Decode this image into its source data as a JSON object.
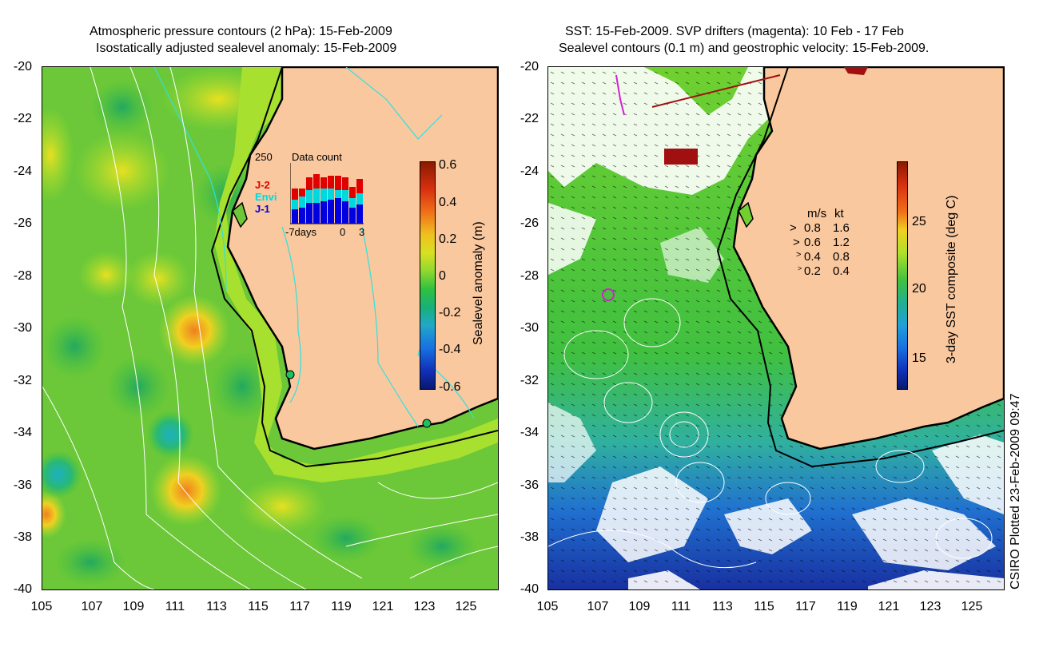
{
  "left_panel": {
    "title_line1": "Atmospheric pressure contours (2 hPa): 15-Feb-2009",
    "title_line2": "Isostatically adjusted sealevel anomaly: 15-Feb-2009",
    "y_ticks": [
      "-20",
      "-22",
      "-24",
      "-26",
      "-28",
      "-30",
      "-32",
      "-34",
      "-36",
      "-38",
      "-40"
    ],
    "x_ticks": [
      "105",
      "107",
      "109",
      "111",
      "113",
      "115",
      "117",
      "119",
      "121",
      "123",
      "125"
    ],
    "colorbar": {
      "label": "Sealevel anomaly (m)",
      "ticks": [
        "0.6",
        "0.4",
        "0.2",
        "0",
        "-0.2",
        "-0.4",
        "-0.6"
      ]
    },
    "inset": {
      "title": "Data count",
      "max_label": "250",
      "legend": [
        "J-2",
        "Envi",
        "J-1"
      ],
      "legend_colors": [
        "#e00000",
        "#00d8e0",
        "#0000e0"
      ],
      "x_labels": [
        "-7days",
        "0",
        "3"
      ]
    }
  },
  "right_panel": {
    "title_line1": "SST: 15-Feb-2009. SVP drifters (magenta): 10 Feb - 17 Feb",
    "title_line2": "Sealevel contours (0.1 m) and geostrophic velocity: 15-Feb-2009.",
    "y_ticks": [
      "-20",
      "-22",
      "-24",
      "-26",
      "-28",
      "-30",
      "-32",
      "-34",
      "-36",
      "-38",
      "-40"
    ],
    "x_ticks": [
      "105",
      "107",
      "109",
      "111",
      "113",
      "115",
      "117",
      "119",
      "121",
      "123",
      "125"
    ],
    "colorbar": {
      "label": "3-day SST composite (deg C)",
      "ticks": [
        "25",
        "20",
        "15"
      ]
    },
    "velocity_legend": {
      "header_ms": "m/s",
      "header_kt": "kt",
      "rows": [
        {
          "ms": "0.8",
          "kt": "1.6"
        },
        {
          "ms": "0.6",
          "kt": "1.2"
        },
        {
          "ms": "0.4",
          "kt": "0.8"
        },
        {
          "ms": "0.2",
          "kt": "0.4"
        }
      ]
    }
  },
  "footer_credit": "CSIRO Plotted 23-Feb-2009 09:47",
  "colors": {
    "land": "#fac89e",
    "ocean_green": "#7fd82a",
    "coast": "#000000",
    "drifter": "#d020d0"
  }
}
